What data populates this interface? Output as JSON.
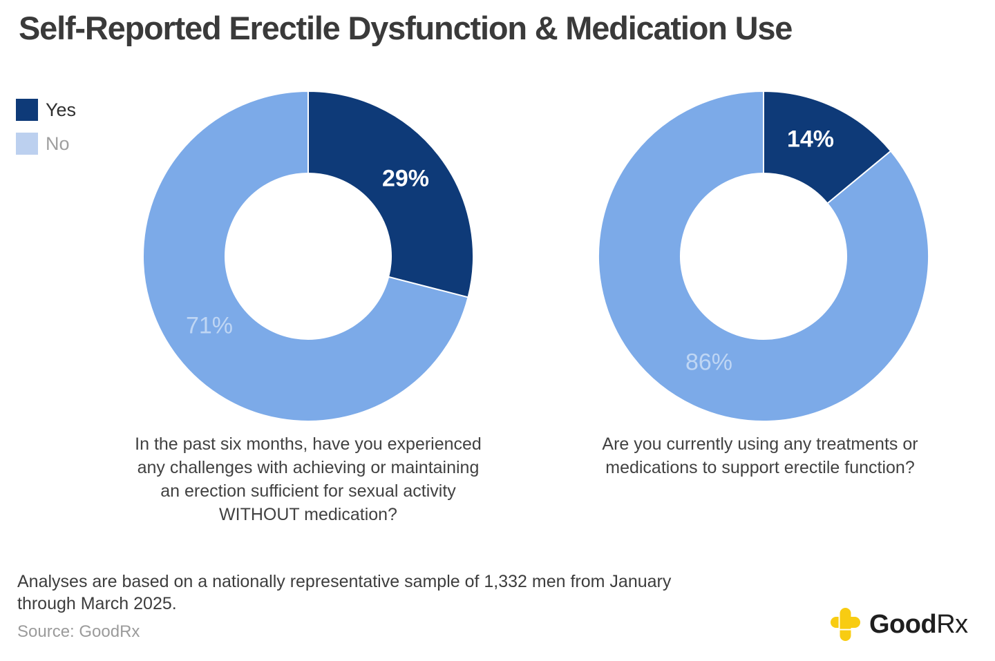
{
  "title": "Self-Reported Erectile Dysfunction & Medication Use",
  "colors": {
    "yes_navy": "#0e3a78",
    "no_blue": "#7caae8",
    "legend_no_swatch": "#bcd0ef",
    "pct_label_on_yes": "#ffffff",
    "pct_label_on_no": "#bfd6f4",
    "legend_yes_text": "#2f2f2f",
    "legend_no_text": "#9f9f9f",
    "brand_yellow": "#f8cc12"
  },
  "legend": {
    "items": [
      {
        "label": "Yes",
        "swatch_color": "#0e3a78",
        "text_color": "#2f2f2f"
      },
      {
        "label": "No",
        "swatch_color": "#bcd0ef",
        "text_color": "#9f9f9f"
      }
    ]
  },
  "chart_data": [
    {
      "type": "pie",
      "subtype": "donut",
      "categories": [
        "Yes",
        "No"
      ],
      "values": [
        29,
        71
      ],
      "labels": [
        "29%",
        "71%"
      ],
      "colors": [
        "#0e3a78",
        "#7caae8"
      ],
      "start_angle_deg": -90,
      "direction": "clockwise",
      "question": "In the past six months, have you experienced any challenges with achieving or maintaining an erection sufficient for sexual activity WITHOUT medication?",
      "caption_lines": [
        "In the past six months, have you experienced",
        "any challenges with achieving or maintaining",
        "an erection sufficient for sexual activity",
        "WITHOUT medication?"
      ]
    },
    {
      "type": "pie",
      "subtype": "donut",
      "categories": [
        "Yes",
        "No"
      ],
      "values": [
        14,
        86
      ],
      "labels": [
        "14%",
        "86%"
      ],
      "colors": [
        "#0e3a78",
        "#7caae8"
      ],
      "start_angle_deg": -90,
      "direction": "clockwise",
      "question": "Are you currently using any treatments or medications to support erectile function?",
      "caption_lines": [
        "Are you currently using any treatments or",
        "medications to support erectile function?"
      ]
    }
  ],
  "footer": {
    "note_lines": [
      "Analyses are based on a nationally representative sample of 1,332 men from January",
      "through March 2025."
    ],
    "source": "Source: GoodRx",
    "logo_text_bold": "Good",
    "logo_text_light": "Rx"
  }
}
